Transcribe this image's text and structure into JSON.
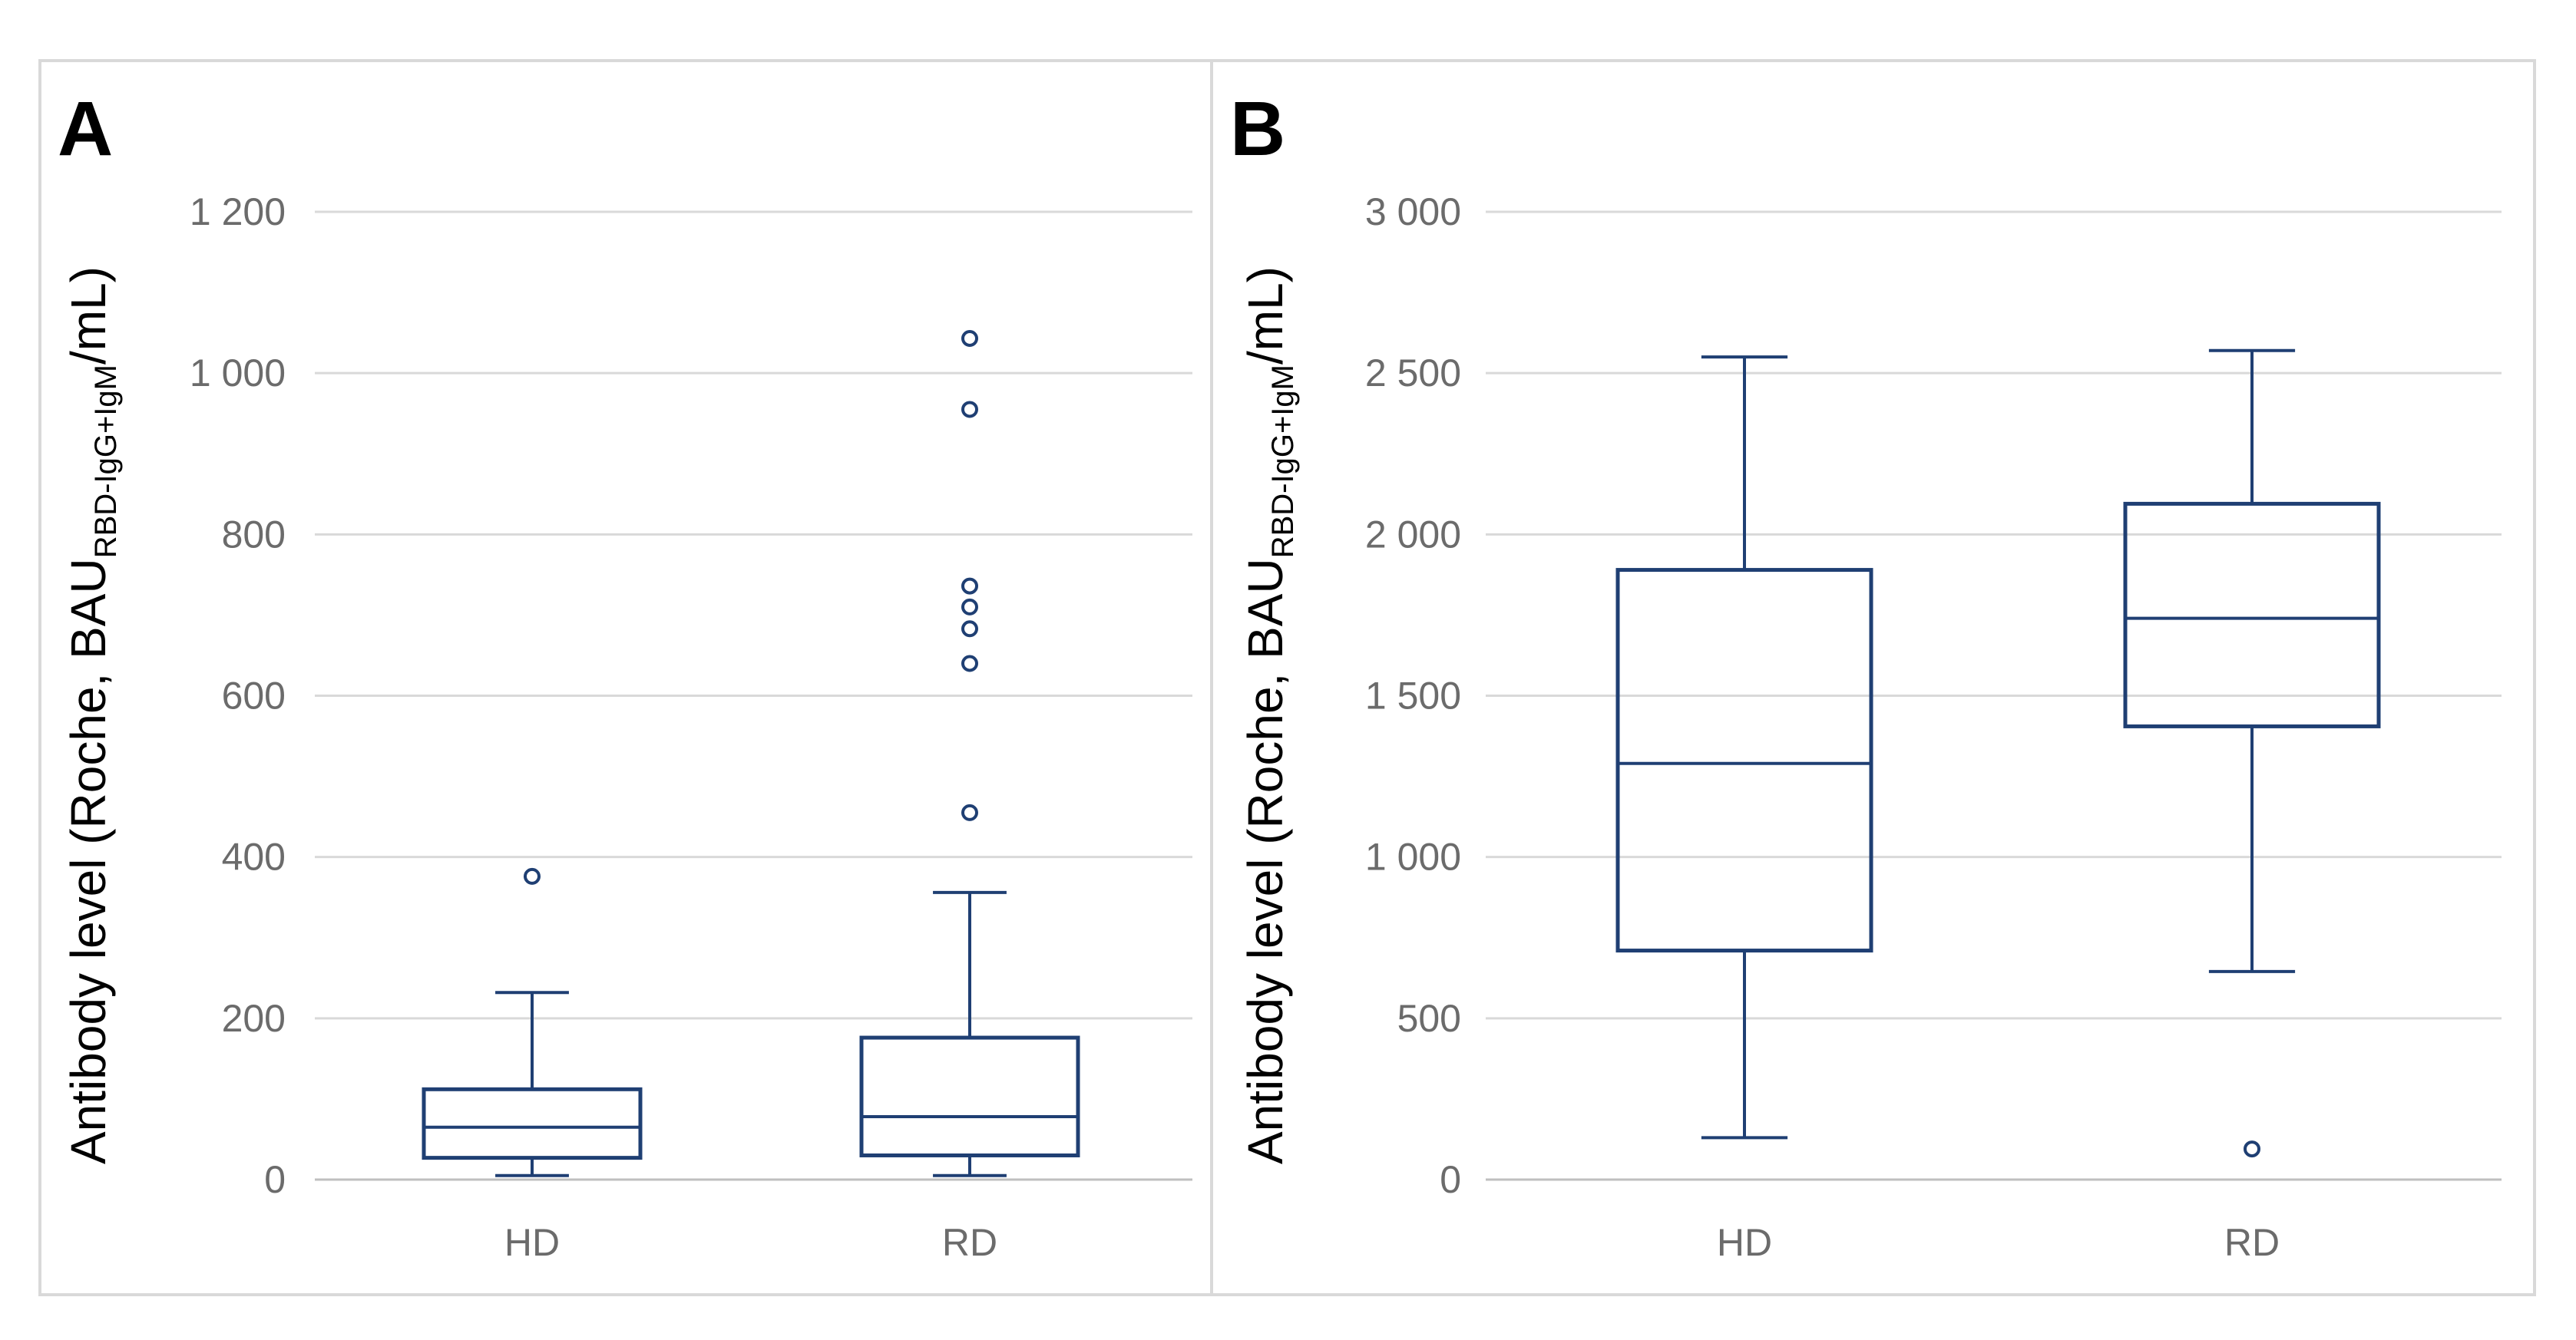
{
  "colors": {
    "box": "#1f3f73",
    "grid": "#d9d9d9",
    "axis": "#bfbfbf",
    "border": "#d9d9d9",
    "tick_text": "#6b6b6b"
  },
  "chart_data": [
    {
      "type": "box",
      "panel_label": "A",
      "ylabel": {
        "main": "Antibody level (Roche, BAU",
        "subscript": "RBD-IgG+IgM",
        "suffix": "/mL)"
      },
      "ylim": [
        0,
        1200
      ],
      "yticks": [
        0,
        200,
        400,
        600,
        800,
        1000,
        1200
      ],
      "ytick_labels": [
        "0",
        "200",
        "400",
        "600",
        "800",
        "1 000",
        "1 200"
      ],
      "categories": [
        "HD",
        "RD"
      ],
      "boxes": [
        {
          "name": "HD",
          "whisker_low": 5,
          "q1": 27,
          "median": 65,
          "q3": 112,
          "whisker_high": 232,
          "outliers": [
            376
          ]
        },
        {
          "name": "RD",
          "whisker_low": 5,
          "q1": 30,
          "median": 78,
          "q3": 176,
          "whisker_high": 356,
          "outliers": [
            455,
            640,
            683,
            710,
            736,
            955,
            1043
          ]
        }
      ]
    },
    {
      "type": "box",
      "panel_label": "B",
      "ylabel": {
        "main": "Antibody level (Roche, BAU",
        "subscript": "RBD-IgG+IgM",
        "suffix": "/mL)"
      },
      "ylim": [
        0,
        3000
      ],
      "yticks": [
        0,
        500,
        1000,
        1500,
        2000,
        2500,
        3000
      ],
      "ytick_labels": [
        "0",
        "500",
        "1 000",
        "1 500",
        "2 000",
        "2 500",
        "3 000"
      ],
      "categories": [
        "HD",
        "RD"
      ],
      "boxes": [
        {
          "name": "HD",
          "whisker_low": 130,
          "q1": 710,
          "median": 1290,
          "q3": 1890,
          "whisker_high": 2550,
          "outliers": []
        },
        {
          "name": "RD",
          "whisker_low": 645,
          "q1": 1405,
          "median": 1740,
          "q3": 2095,
          "whisker_high": 2570,
          "outliers": [
            95
          ]
        }
      ]
    }
  ]
}
